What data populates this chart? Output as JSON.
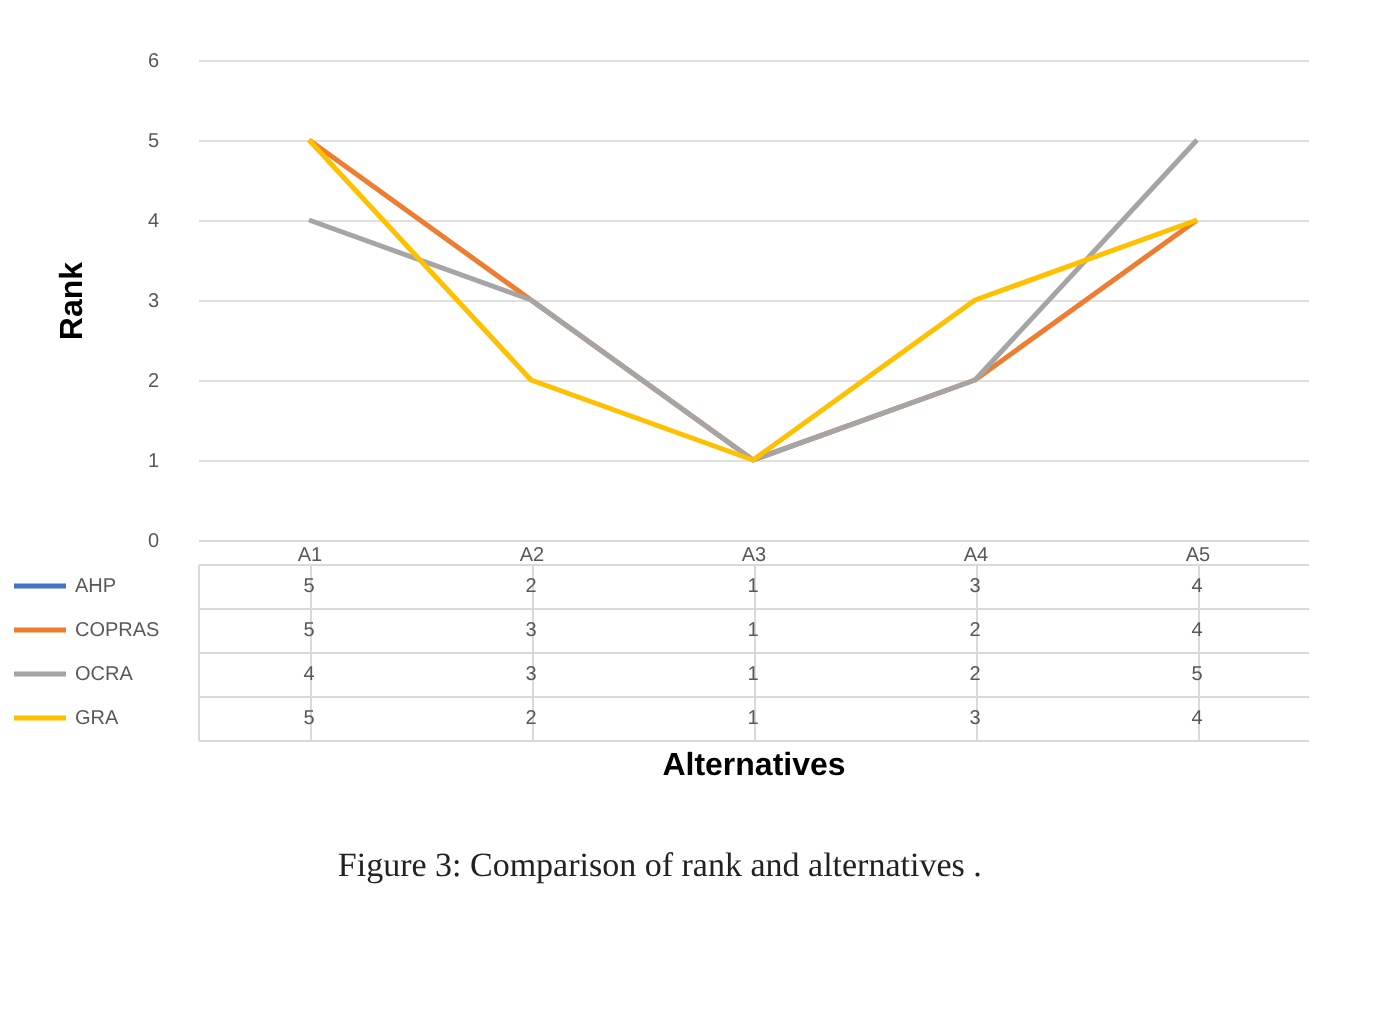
{
  "chart_data": {
    "type": "line",
    "title": "Figure 3:  Comparison of rank and alternatives .",
    "ylabel": "Rank",
    "annotations": [
      "Alternatives"
    ],
    "categories": [
      "A1",
      "A2",
      "A3",
      "A4",
      "A5"
    ],
    "series": [
      {
        "name": "AHP",
        "color": "#4472c4",
        "values": [
          null,
          null,
          null,
          null,
          null
        ],
        "value_labels": [
          "5",
          "2",
          "1",
          "3",
          "4"
        ]
      },
      {
        "name": "COPRAS",
        "color": "#ed7d31",
        "values": [
          5,
          3,
          1,
          2,
          4
        ],
        "value_labels": [
          "5",
          "3",
          "1",
          "2",
          "4"
        ]
      },
      {
        "name": "OCRA",
        "color": "#a5a5a5",
        "values": [
          4,
          3,
          1,
          2,
          5
        ],
        "value_labels": [
          "4",
          "3",
          "1",
          "2",
          "5"
        ]
      },
      {
        "name": "GRA",
        "color": "#ffc000",
        "values": [
          5,
          2,
          1,
          3,
          4
        ],
        "value_labels": [
          "5",
          "2",
          "1",
          "3",
          "4"
        ]
      }
    ],
    "ylim": [
      0,
      6
    ],
    "yticks": [
      0,
      1,
      2,
      3,
      4,
      5,
      6
    ],
    "grid": "y",
    "legend": "bottom",
    "marker": "none",
    "line_style": "solid"
  }
}
